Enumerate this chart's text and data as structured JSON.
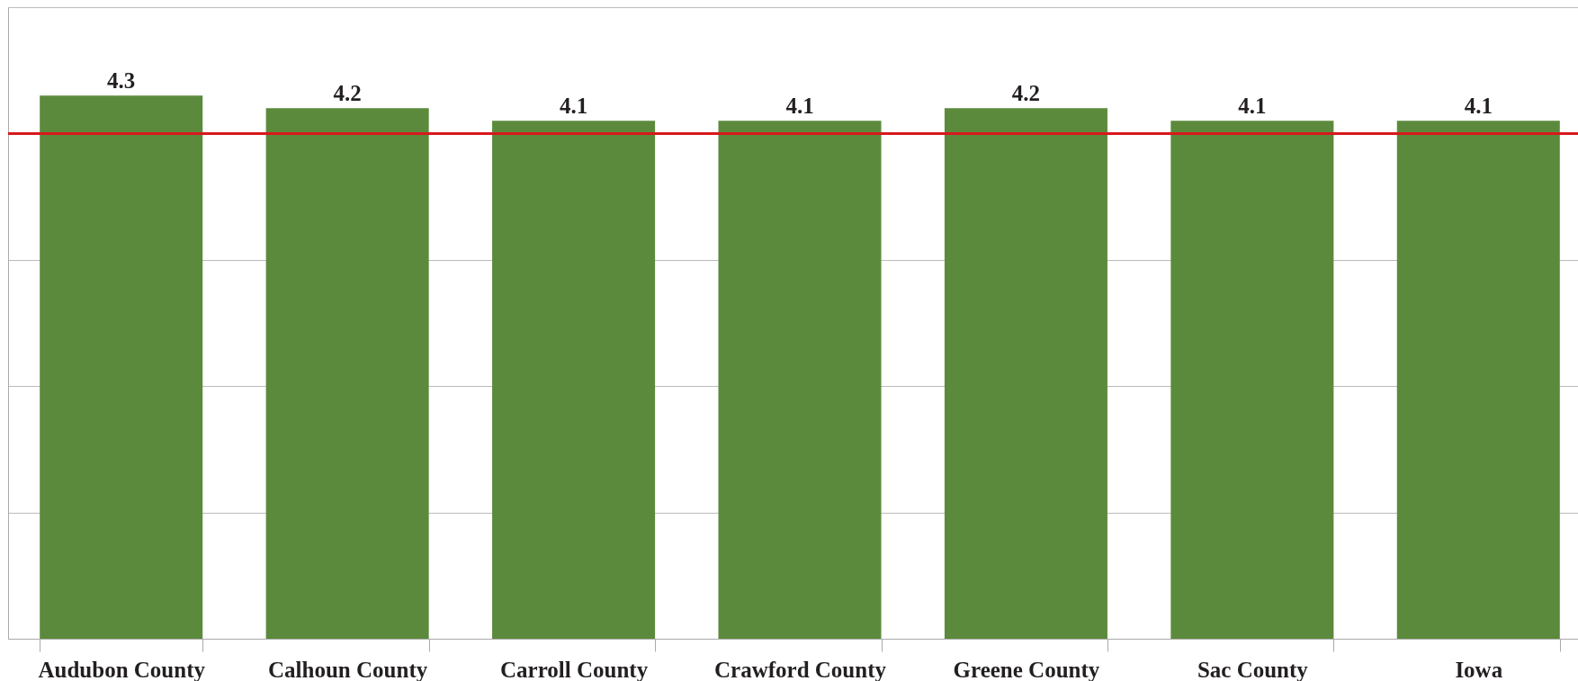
{
  "chart_data": {
    "type": "bar",
    "categories": [
      "Audubon County",
      "Calhoun County",
      "Carroll County",
      "Crawford County",
      "Greene County",
      "Sac County",
      "Iowa"
    ],
    "values": [
      4.3,
      4.2,
      4.1,
      4.1,
      4.2,
      4.1,
      4.1
    ],
    "color": "#5b8a3c",
    "data_labels": true,
    "ylim": [
      0,
      5
    ],
    "yticks": [
      {
        "value": 0,
        "label": null
      },
      {
        "value": 1,
        "label": null
      },
      {
        "value": 2,
        "label": null
      },
      {
        "value": 3,
        "label": null
      },
      {
        "value": 4,
        "label": null
      },
      {
        "value": 5,
        "label": null
      }
    ],
    "grid": "y",
    "tick_labels": "x",
    "ref_lines": [
      {
        "axis": "y",
        "value": 4,
        "color": "#d7191c"
      }
    ]
  }
}
